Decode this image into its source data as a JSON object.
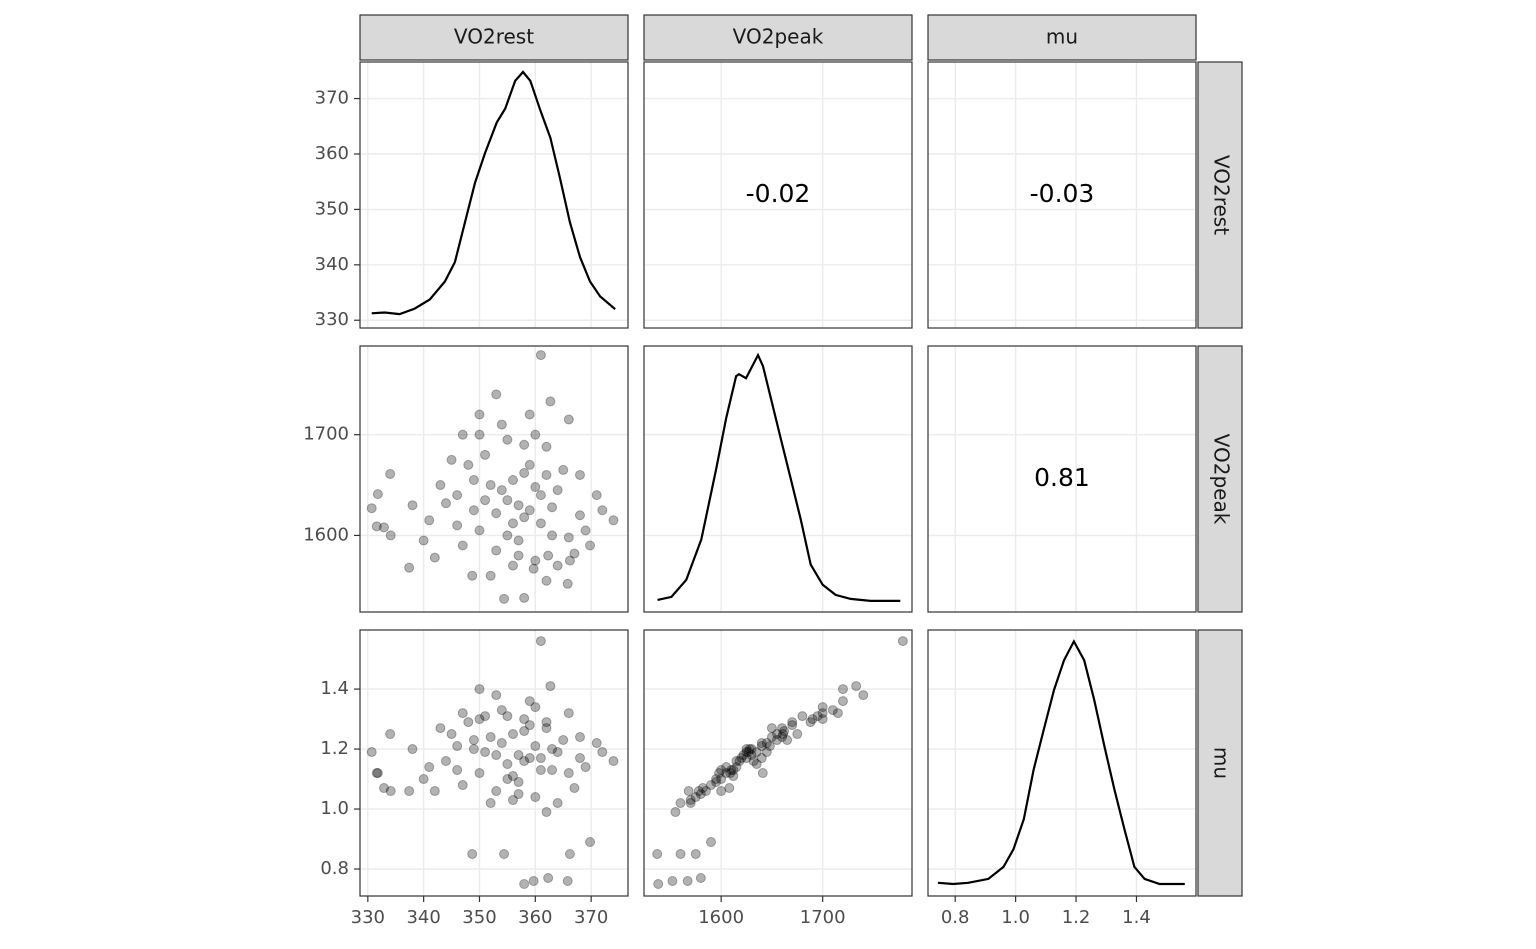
{
  "chart_data": {
    "type": "pairs",
    "variables": [
      {
        "name": "VO2rest",
        "lim": [
          328.6,
          376.6
        ],
        "ticks": [
          330,
          340,
          350,
          360,
          370
        ],
        "values": [
          330.7,
          331.8,
          331.6,
          332.9,
          334.0,
          334.1,
          337.4,
          361.0,
          354.4,
          365.8,
          358.0,
          348.7,
          359.7,
          362.3,
          366.2,
          369.8,
          362.7,
          350,
          357,
          352,
          361,
          349,
          364,
          355,
          359,
          346,
          368,
          353,
          362,
          350,
          358,
          344,
          366,
          356,
          360,
          348,
          363,
          354,
          341,
          371,
          357,
          351,
          365,
          347,
          360,
          355,
          369,
          343,
          358,
          352,
          362,
          345,
          367,
          354,
          359,
          340,
          372,
          350,
          356,
          363,
          349,
          361,
          353,
          366,
          346,
          358,
          374,
          338,
          357,
          355,
          364,
          351,
          360,
          347,
          362,
          356,
          353,
          368,
          342,
          359
        ]
      },
      {
        "name": "VO2peak",
        "lim": [
          1524,
          1788
        ],
        "ticks": [
          1600,
          1700
        ],
        "values": [
          1627,
          1641,
          1609,
          1608,
          1661,
          1600,
          1568,
          1779,
          1537,
          1552,
          1538,
          1560,
          1567,
          1580,
          1575,
          1590,
          1733,
          1720,
          1630,
          1650,
          1612,
          1625,
          1645,
          1600,
          1670,
          1640,
          1620,
          1585,
          1660,
          1605,
          1690,
          1632,
          1598,
          1655,
          1575,
          1670,
          1628,
          1710,
          1615,
          1640,
          1595,
          1680,
          1665,
          1590,
          1700,
          1635,
          1605,
          1650,
          1618,
          1560,
          1688,
          1675,
          1582,
          1645,
          1720,
          1595,
          1625,
          1700,
          1570,
          1600,
          1655,
          1640,
          1622,
          1715,
          1610,
          1662,
          1615,
          1630,
          1580,
          1695,
          1570,
          1635,
          1648,
          1700,
          1555,
          1612,
          1740,
          1660,
          1578,
          1625
        ]
      },
      {
        "name": "mu",
        "lim": [
          0.71,
          1.597
        ],
        "ticks": [
          0.8,
          {
            "value": 1,
            "label": "1.0"
          },
          1.2,
          1.4
        ],
        "values": [
          1.19,
          1.12,
          1.12,
          1.07,
          1.25,
          1.06,
          1.06,
          1.56,
          0.85,
          0.76,
          0.75,
          0.85,
          0.76,
          0.77,
          0.85,
          0.89,
          1.41,
          1.4,
          1.18,
          1.24,
          1.13,
          1.2,
          1.19,
          1.1,
          1.28,
          1.21,
          1.17,
          1.06,
          1.27,
          1.12,
          1.3,
          1.16,
          1.12,
          1.25,
          1.04,
          1.29,
          1.2,
          1.33,
          1.14,
          1.22,
          1.09,
          1.31,
          1.23,
          1.08,
          1.34,
          1.15,
          1.14,
          1.27,
          1.16,
          1.02,
          1.29,
          1.25,
          1.07,
          1.22,
          1.36,
          1.1,
          1.19,
          1.3,
          1.03,
          1.13,
          1.23,
          1.17,
          1.18,
          1.32,
          1.13,
          1.26,
          1.16,
          1.2,
          1.05,
          1.31,
          1.02,
          1.19,
          1.21,
          1.32,
          0.99,
          1.11,
          1.38,
          1.24,
          1.06,
          1.17
        ]
      }
    ],
    "panels": [
      [
        {
          "type": "density",
          "x": [
            330.7,
            333.0,
            335.7,
            338.4,
            341.1,
            343.8,
            345.6,
            347.4,
            349.2,
            351.0,
            353.1,
            354.6,
            356.4,
            357.8,
            359.1,
            360.9,
            362.7,
            364.4,
            366.2,
            368.0,
            369.8,
            371.6,
            374.3
          ],
          "y": [
            331.25,
            331.4,
            331.1,
            332.1,
            333.75,
            337.0,
            340.5,
            347.7,
            354.8,
            360.2,
            365.7,
            368.2,
            373.2,
            374.8,
            373.2,
            367.9,
            362.9,
            355.7,
            347.7,
            341.4,
            337.0,
            334.3,
            332.0
          ]
        },
        {
          "type": "correlation",
          "value": -0.02
        },
        {
          "type": "correlation",
          "value": -0.03
        }
      ],
      [
        {
          "type": "scatter"
        },
        {
          "type": "density",
          "x": [
            1537.3,
            1551.0,
            1565.7,
            1580.4,
            1595.1,
            1604.9,
            1614.7,
            1617.6,
            1624.5,
            1636.3,
            1641.2,
            1649.0,
            1658.8,
            1668.6,
            1678.4,
            1688.2,
            1700,
            1712.7,
            1727.5,
            1747.1,
            1776.5
          ],
          "y": [
            1536,
            1539,
            1556,
            1596,
            1666,
            1716,
            1758,
            1760,
            1756,
            1779,
            1768,
            1736,
            1696,
            1656,
            1616,
            1571,
            1551,
            1541,
            1537,
            1535,
            1535
          ]
        },
        {
          "type": "correlation",
          "value": 0.81
        }
      ],
      [
        {
          "type": "scatter"
        },
        {
          "type": "scatter"
        },
        {
          "type": "density",
          "x": [
            0.743,
            0.793,
            0.843,
            0.91,
            0.96,
            0.993,
            1.027,
            1.06,
            1.093,
            1.127,
            1.16,
            1.193,
            1.227,
            1.26,
            1.293,
            1.327,
            1.36,
            1.393,
            1.427,
            1.477,
            1.56
          ],
          "y": [
            0.754,
            0.75,
            0.754,
            0.767,
            0.807,
            0.866,
            0.966,
            1.132,
            1.264,
            1.397,
            1.496,
            1.559,
            1.496,
            1.364,
            1.214,
            1.065,
            0.933,
            0.807,
            0.767,
            0.75,
            0.75
          ]
        }
      ]
    ]
  }
}
